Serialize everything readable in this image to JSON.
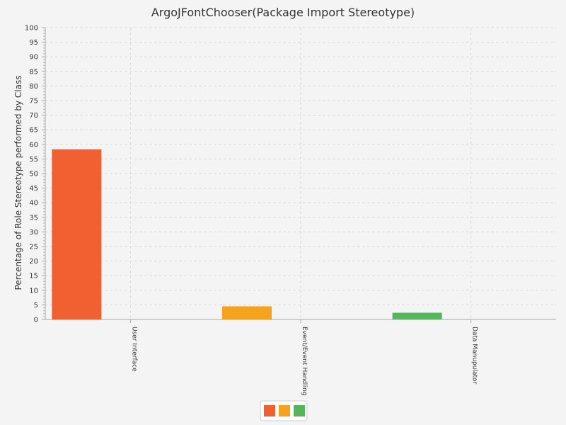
{
  "chart_data": {
    "type": "bar",
    "title": "ArgoJFontChooser(Package Import Stereotype)",
    "ylabel": "Percentage of Role Stereotype performed by Class",
    "xlabel": "",
    "ylim": [
      0,
      100
    ],
    "y_ticks": [
      0,
      5,
      10,
      15,
      20,
      25,
      30,
      35,
      40,
      45,
      50,
      55,
      60,
      65,
      70,
      75,
      80,
      85,
      90,
      95,
      100
    ],
    "categories": [
      "User Interface",
      "Event/Event Handling",
      "Data Manupulator"
    ],
    "series": [
      {
        "values": [
          58.3,
          4.5,
          2.3
        ],
        "colors": [
          "#f06030",
          "#f5a21f",
          "#56b45a"
        ]
      }
    ],
    "grid": true,
    "legend": {
      "placement": "bottom-center",
      "swatches": [
        "#f06030",
        "#f5a21f",
        "#56b45a"
      ]
    }
  }
}
